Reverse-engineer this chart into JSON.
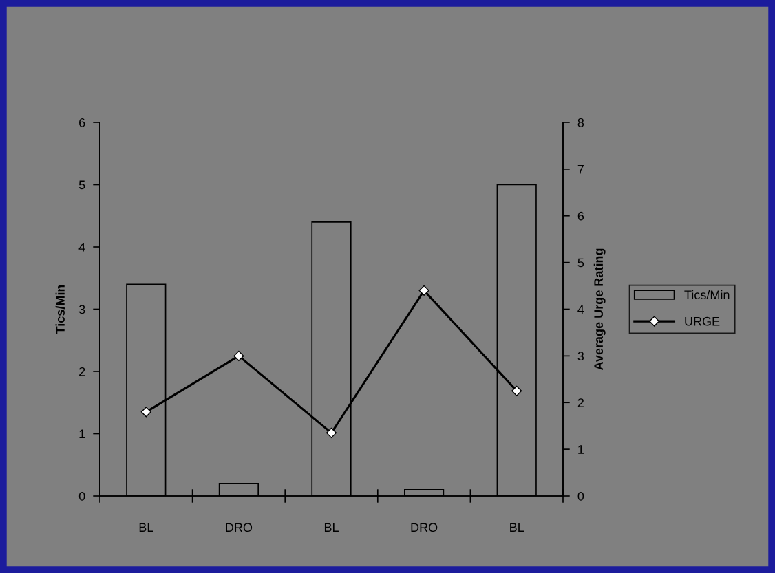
{
  "chart_data": {
    "type": "bar",
    "categories": [
      "BL",
      "DRO",
      "BL",
      "DRO",
      "BL"
    ],
    "ylabel": "Tics/Min",
    "y2label": "Average Urge Rating",
    "ylim": [
      0,
      6
    ],
    "yticks": [
      0,
      1,
      2,
      3,
      4,
      5,
      6
    ],
    "y2lim": [
      0,
      8
    ],
    "y2ticks": [
      0,
      1,
      2,
      3,
      4,
      5,
      6,
      7,
      8
    ],
    "series": [
      {
        "name": "Tics/Min",
        "color": "#808080",
        "values": [
          3.4,
          0.2,
          4.4,
          0.1,
          5.0
        ]
      },
      {
        "name": "URGE",
        "type": "line",
        "axis": "y2",
        "color": "#000000",
        "values": [
          1.8,
          3.0,
          1.35,
          4.4,
          2.25
        ]
      }
    ],
    "marker": "diamond",
    "legend": "right",
    "grid": false
  }
}
